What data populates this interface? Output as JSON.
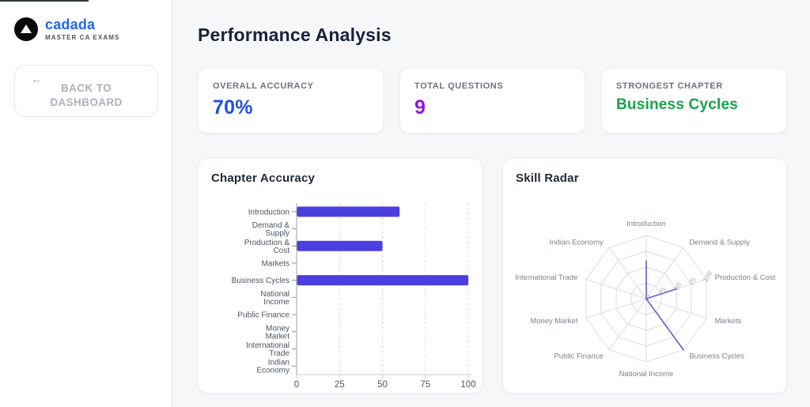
{
  "sidebar": {
    "logo": {
      "name": "cadada",
      "tagline": "MASTER CA EXAMS",
      "brand_color": "#1f66ee"
    },
    "back_button": {
      "label": "BACK TO DASHBOARD",
      "icon": "arrow-left",
      "arrow_glyph": "←"
    }
  },
  "header": {
    "title": "Performance Analysis"
  },
  "stats": [
    {
      "label": "OVERALL ACCURACY",
      "value": "70%",
      "color": "#1e4fe0"
    },
    {
      "label": "TOTAL QUESTIONS",
      "value": "9",
      "color": "#8b16e4"
    },
    {
      "label": "STRONGEST CHAPTER",
      "value": "Business Cycles",
      "color": "#16a34a"
    }
  ],
  "chart_data": [
    {
      "type": "bar",
      "title": "Chapter Accuracy",
      "orientation": "horizontal",
      "categories": [
        "Introduction",
        "Demand & Supply",
        "Production & Cost",
        "Markets",
        "Business Cycles",
        "National Income",
        "Public Finance",
        "Money Market",
        "International Trade",
        "Indian Economy"
      ],
      "category_label_lines": [
        [
          "Introduction"
        ],
        [
          "Demand &",
          "Supply"
        ],
        [
          "Production &",
          "Cost"
        ],
        [
          "Markets"
        ],
        [
          "Business Cycles"
        ],
        [
          "National",
          "Income"
        ],
        [
          "Public Finance"
        ],
        [
          "Money",
          "Market"
        ],
        [
          "International",
          "Trade"
        ],
        [
          "Indian",
          "Economy"
        ]
      ],
      "values": [
        60,
        0,
        50,
        0,
        100,
        0,
        0,
        0,
        0,
        0
      ],
      "xlabel": "",
      "ylabel": "",
      "xlim": [
        0,
        100
      ],
      "xticks": [
        0,
        25,
        50,
        75,
        100
      ],
      "grid": "dashed-vertical",
      "bar_color": "#4c3fe0",
      "axis_color": "#9aa1ac",
      "grid_color": "#d7dae0",
      "tick_label_color": "#4b5563"
    },
    {
      "type": "radar",
      "title": "Skill Radar",
      "categories": [
        "Introduction",
        "Demand & Supply",
        "Production & Cost",
        "Markets",
        "Business Cycles",
        "National Income",
        "Public Finance",
        "Money Market",
        "International Trade",
        "Indian Economy"
      ],
      "values": [
        60,
        0,
        50,
        0,
        100,
        0,
        0,
        0,
        0,
        0
      ],
      "rmax": 100,
      "rticks": [
        0,
        25,
        50,
        75,
        100
      ],
      "rings": 4,
      "grid": "polygon",
      "line_color": "#655ad2",
      "fill_color": "rgba(101,90,210,0.10)",
      "grid_color": "#dadce4",
      "point_label_color": "#7b8290",
      "tick_label_color": "#a6aab4"
    }
  ]
}
